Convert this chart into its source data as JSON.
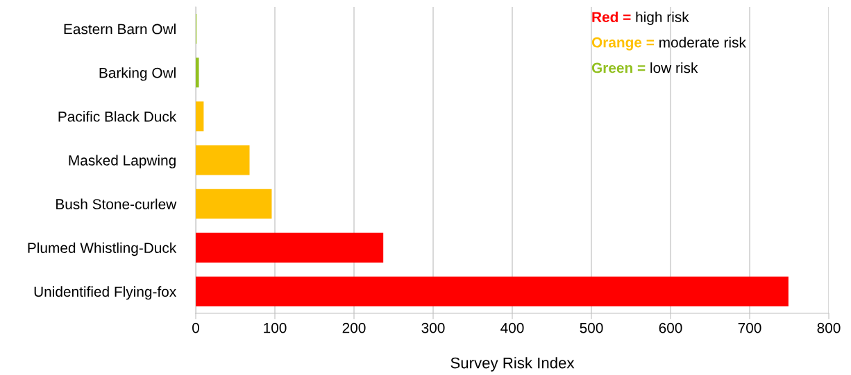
{
  "chart_data": {
    "type": "bar",
    "orientation": "horizontal",
    "xlabel": "Survey Risk Index",
    "categories": [
      "Eastern Barn Owl",
      "Barking Owl",
      "Pacific Black Duck",
      "Masked Lapwing",
      "Bush Stone-curlew",
      "Plumed Whistling-Duck",
      "Unidentified Flying-fox"
    ],
    "values": [
      1,
      4,
      10,
      68,
      96,
      237,
      749
    ],
    "colors": [
      "#92c020",
      "#92c020",
      "#ffc000",
      "#ffc000",
      "#ffc000",
      "#ff0000",
      "#ff0000"
    ],
    "xlim": [
      0,
      800
    ],
    "xticks": [
      0,
      100,
      200,
      300,
      400,
      500,
      600,
      700,
      800
    ],
    "grid": "x",
    "annotations": [
      "Red =",
      "high risk",
      "Orange =",
      "moderate risk",
      "Green =",
      "low risk"
    ]
  }
}
